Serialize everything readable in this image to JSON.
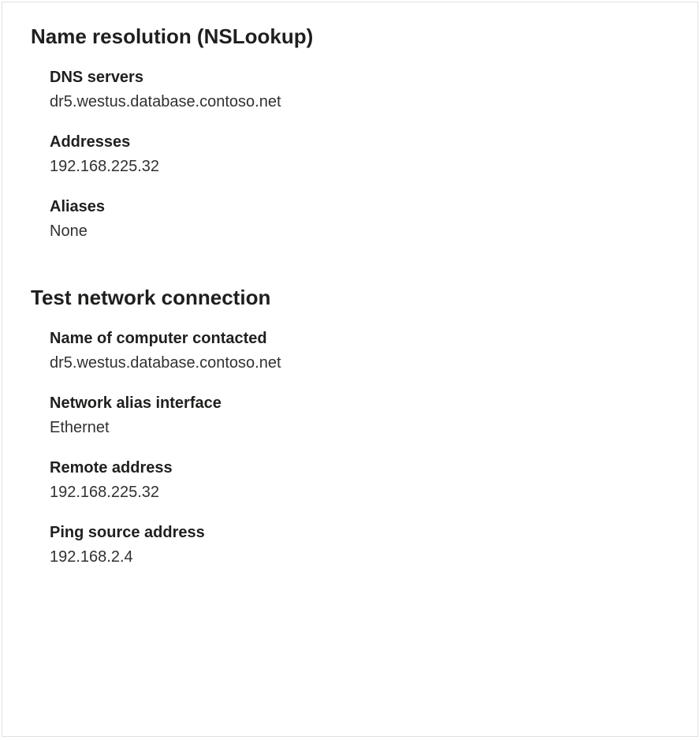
{
  "name_resolution": {
    "title": "Name resolution (NSLookup)",
    "dns_servers": {
      "label": "DNS servers",
      "value": "dr5.westus.database.contoso.net"
    },
    "addresses": {
      "label": "Addresses",
      "value": "192.168.225.32"
    },
    "aliases": {
      "label": "Aliases",
      "value": "None"
    }
  },
  "test_connection": {
    "title": "Test network connection",
    "computer_contacted": {
      "label": "Name of computer contacted",
      "value": "dr5.westus.database.contoso.net"
    },
    "network_alias_interface": {
      "label": "Network alias interface",
      "value": "Ethernet"
    },
    "remote_address": {
      "label": "Remote address",
      "value": "192.168.225.32"
    },
    "ping_source_address": {
      "label": "Ping source address",
      "value": "192.168.2.4"
    }
  }
}
